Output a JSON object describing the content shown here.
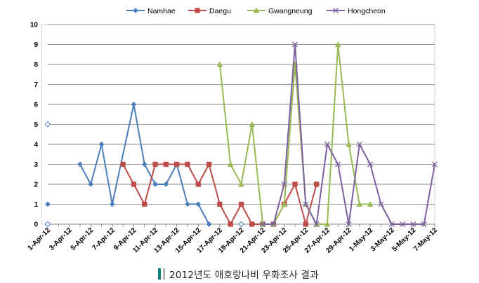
{
  "chart_data": {
    "type": "line",
    "title": "",
    "xlabel": "",
    "ylabel": "",
    "ylim": [
      0,
      10
    ],
    "yticks": [
      "0",
      "1",
      "2",
      "3",
      "4",
      "5",
      "6",
      "7",
      "8",
      "9",
      "10"
    ],
    "grid": true,
    "legend_position": "top",
    "x_tick_labels": [
      "1-Apr-12",
      "3-Apr-12",
      "5-Apr-12",
      "7-Apr-12",
      "9-Apr-12",
      "11-Apr-12",
      "13-Apr-12",
      "15-Apr-12",
      "17-Apr-12",
      "19-Apr-12",
      "21-Apr-12",
      "23-Apr-12",
      "25-Apr-12",
      "27-Apr-12",
      "29-Apr-12",
      "1-May-12",
      "3-May-12",
      "5-May-12",
      "7-May-12"
    ],
    "days": 37,
    "series": [
      {
        "name": "Namhae",
        "color": "#4a7ebb",
        "marker": "diamond",
        "segments": [
          [
            [
              0,
              1
            ]
          ],
          [
            [
              3,
              3
            ],
            [
              4,
              2
            ],
            [
              5,
              4
            ],
            [
              6,
              1
            ],
            [
              8,
              6
            ],
            [
              9,
              3
            ],
            [
              10,
              2
            ],
            [
              11,
              2
            ],
            [
              12,
              3
            ],
            [
              13,
              1
            ],
            [
              14,
              1
            ],
            [
              15,
              0
            ]
          ]
        ],
        "hollow": [
          [
            0,
            0
          ],
          [
            0,
            5
          ],
          [
            18,
            0
          ]
        ]
      },
      {
        "name": "Daegu",
        "color": "#be4b48",
        "marker": "square",
        "segments": [
          [
            [
              7,
              3
            ],
            [
              8,
              2
            ],
            [
              9,
              1
            ],
            [
              10,
              3
            ],
            [
              11,
              3
            ],
            [
              12,
              3
            ],
            [
              13,
              3
            ],
            [
              14,
              2
            ],
            [
              15,
              3
            ],
            [
              16,
              1
            ],
            [
              17,
              0
            ],
            [
              18,
              1
            ],
            [
              19,
              0
            ],
            [
              20,
              0
            ],
            [
              21,
              0
            ],
            [
              22,
              1
            ],
            [
              23,
              2
            ],
            [
              24,
              0
            ],
            [
              25,
              2
            ]
          ]
        ]
      },
      {
        "name": "Gwangneung",
        "color": "#98b954",
        "marker": "triangle",
        "segments": [
          [
            [
              16,
              8
            ],
            [
              17,
              3
            ],
            [
              18,
              2
            ],
            [
              19,
              5
            ],
            [
              20,
              0
            ],
            [
              21,
              0
            ],
            [
              22,
              1
            ],
            [
              23,
              8
            ],
            [
              24,
              1
            ],
            [
              25,
              0
            ],
            [
              26,
              0
            ],
            [
              27,
              9
            ],
            [
              28,
              4
            ],
            [
              29,
              1
            ],
            [
              30,
              1
            ]
          ]
        ]
      },
      {
        "name": "Hongcheon",
        "color": "#7d60a0",
        "marker": "x",
        "segments": [
          [
            [
              20,
              0
            ],
            [
              21,
              0
            ],
            [
              22,
              2
            ],
            [
              23,
              9
            ],
            [
              24,
              1
            ],
            [
              25,
              0
            ],
            [
              26,
              4
            ],
            [
              27,
              3
            ],
            [
              28,
              0
            ],
            [
              29,
              4
            ],
            [
              30,
              3
            ],
            [
              31,
              1
            ],
            [
              32,
              0
            ],
            [
              33,
              0
            ],
            [
              34,
              0
            ],
            [
              35,
              0
            ],
            [
              36,
              3
            ]
          ]
        ]
      }
    ]
  },
  "caption": "2012년도 애호랑나비 우화조사 결과"
}
